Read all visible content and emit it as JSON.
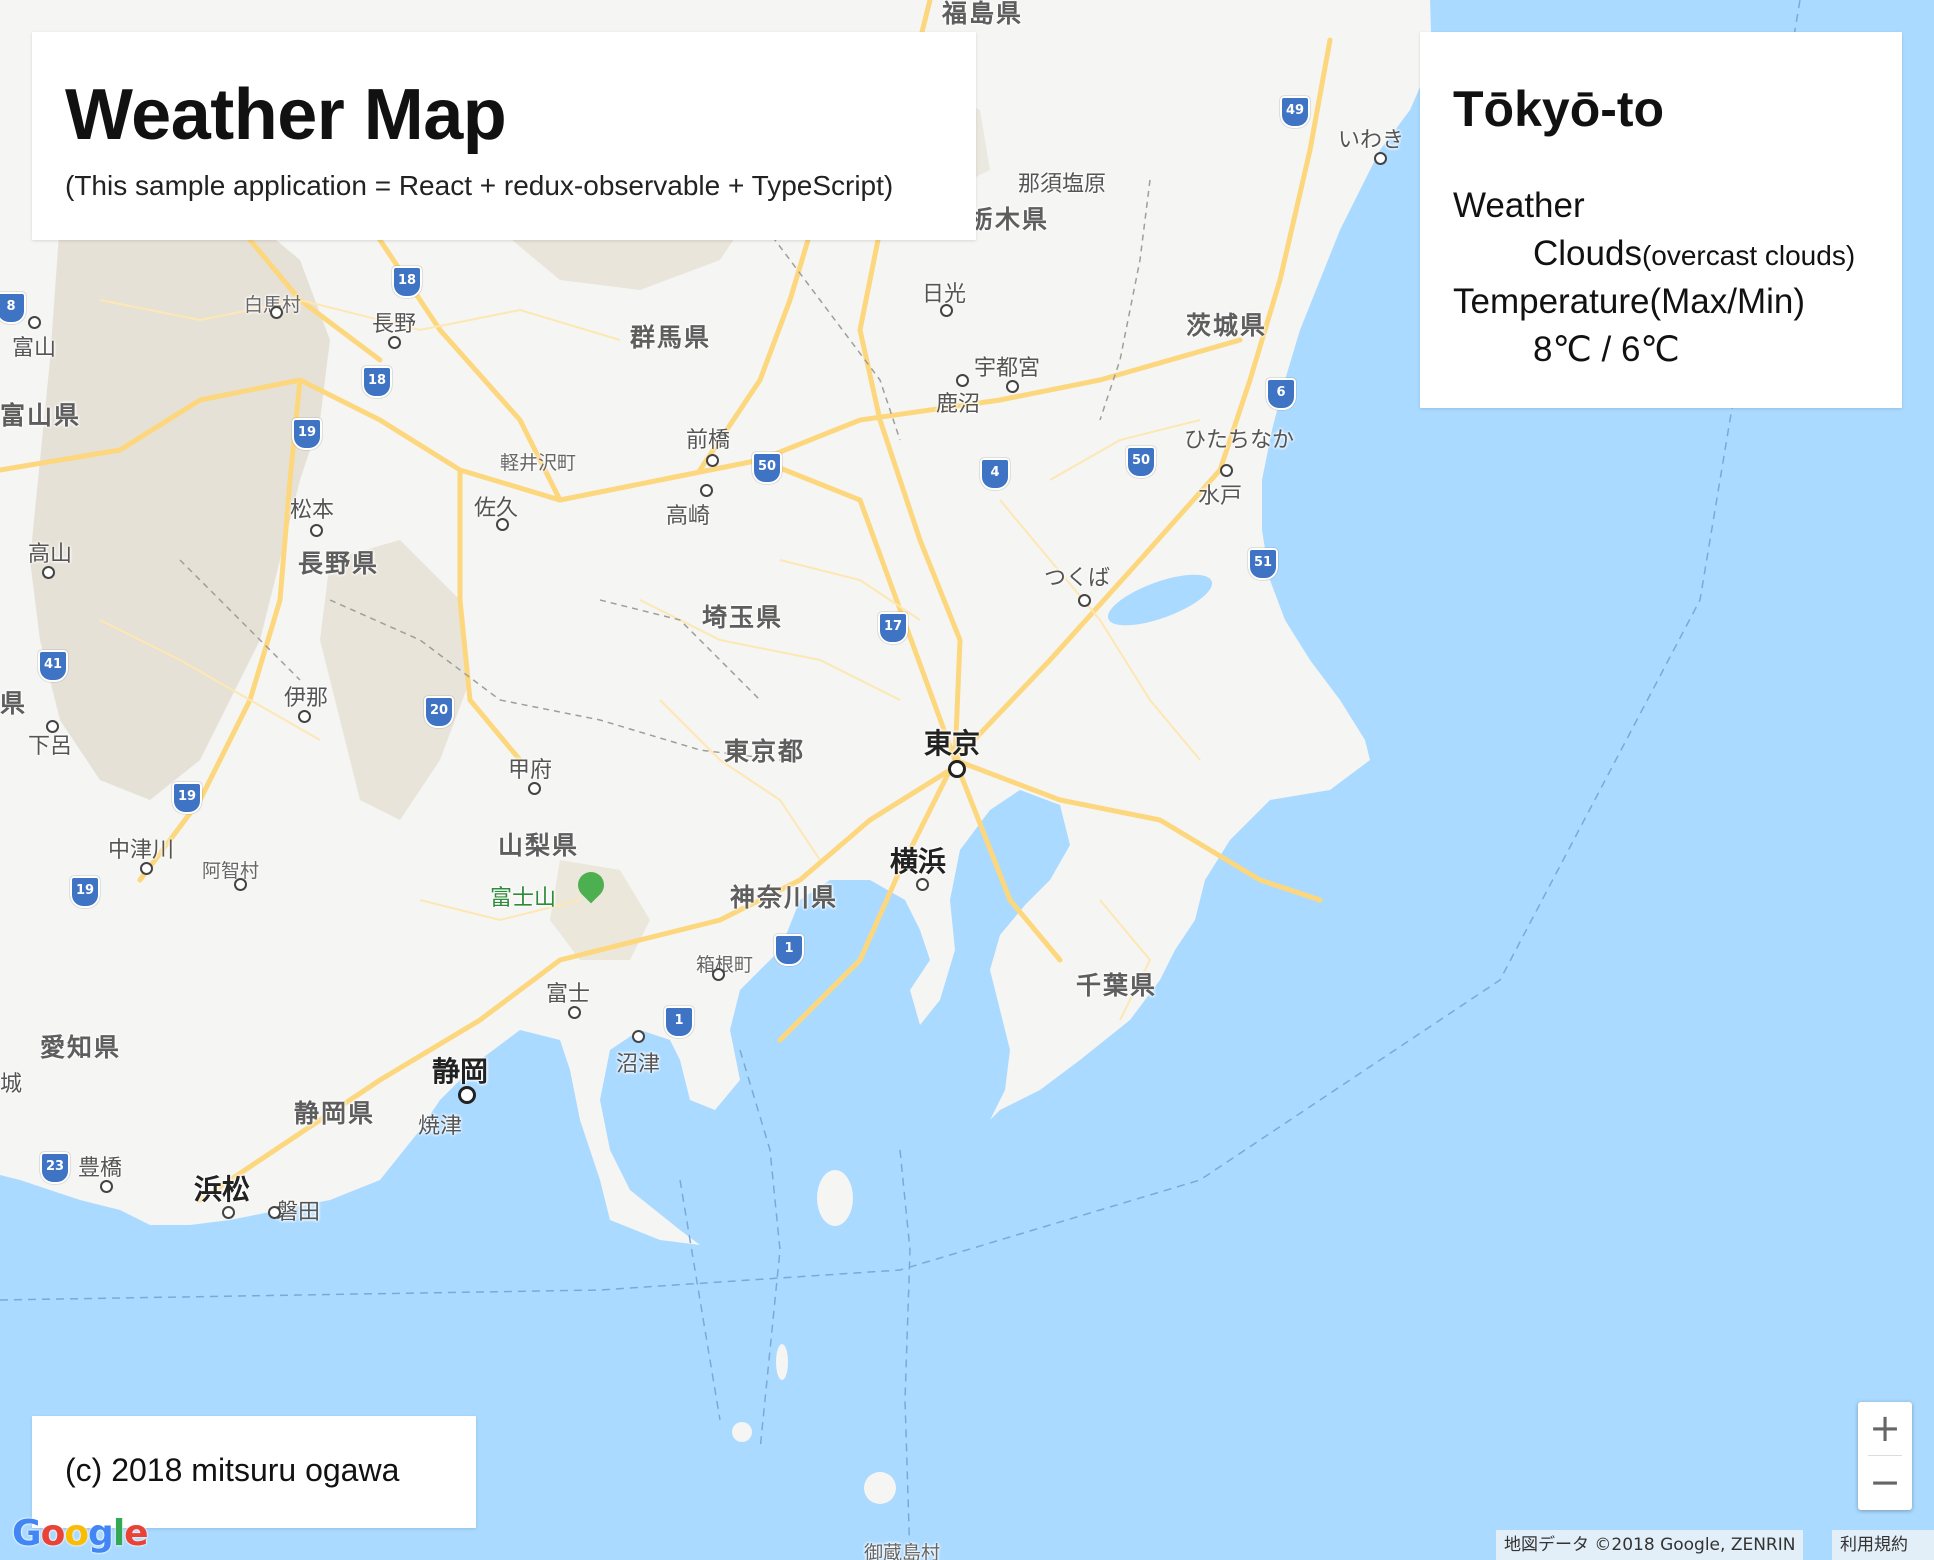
{
  "header": {
    "title": "Weather Map",
    "subtitle": "(This sample application = React + redux-observable + TypeScript)"
  },
  "weather": {
    "city": "Tōkyō-to",
    "weather_label": "Weather",
    "weather_main": "Clouds",
    "weather_description": "(overcast clouds)",
    "temperature_label": "Temperature(Max/Min)",
    "temperature_value": "8℃ / 6℃"
  },
  "footer": {
    "copyright": "(c) 2018 mitsuru ogawa"
  },
  "map": {
    "zoom_in": "+",
    "zoom_out": "−",
    "google_logo": "Google",
    "data_attribution": "地図データ ©2018 Google, ZENRIN",
    "terms": "利用規約",
    "colors": {
      "sea": "#aadaff",
      "land": "#f5f5f3",
      "mountain": "#e4dfd3",
      "road": "#fcd77e",
      "highway_shield": "#3f73c4"
    },
    "places": {
      "fukushima": "福島県",
      "iwaki": "いわき",
      "nasushiobara": "那須塩原",
      "tochigi": "栃木県",
      "nikko": "日光",
      "ibaraki": "茨城県",
      "utsunomiya": "宇都宮",
      "kanuma": "鹿沼",
      "hitachinaka": "ひたちなか",
      "mito": "水戸",
      "tsukuba": "つくば",
      "gunma": "群馬県",
      "maebashi": "前橋",
      "takasaki": "高崎",
      "karuizawa": "軽井沢町",
      "saku": "佐久",
      "saitama": "埼玉県",
      "hakuba": "白馬村",
      "nagano": "長野",
      "toyama": "富山",
      "toyama_pref": "富山県",
      "matsumoto": "松本",
      "nagano_pref": "長野県",
      "takayama": "高山",
      "ina": "伊那",
      "gero": "下呂",
      "nakatsugawa": "中津川",
      "achi": "阿智村",
      "kofu": "甲府",
      "yamanashi": "山梨県",
      "tokyo_pref": "東京都",
      "tokyo": "東京",
      "yokohama": "横浜",
      "kanagawa": "神奈川県",
      "fuji_san": "富士山",
      "hakone": "箱根町",
      "fuji": "富士",
      "numazu": "沼津",
      "chiba": "千葉県",
      "shizuoka": "静岡",
      "shizuoka_pref": "静岡県",
      "yaizu": "焼津",
      "aichi": "愛知県",
      "toyohashi": "豊橋",
      "hamamatsu": "浜松",
      "iwata": "磐田",
      "mikurajima": "御蔵島村",
      "edge_ken1": "県",
      "edge_ken2": "県",
      "edge_shiro": "城"
    },
    "shields": [
      "49",
      "18",
      "18",
      "19",
      "50",
      "4",
      "50",
      "6",
      "51",
      "17",
      "41",
      "20",
      "19",
      "19",
      "1",
      "1",
      "23",
      "8"
    ]
  }
}
